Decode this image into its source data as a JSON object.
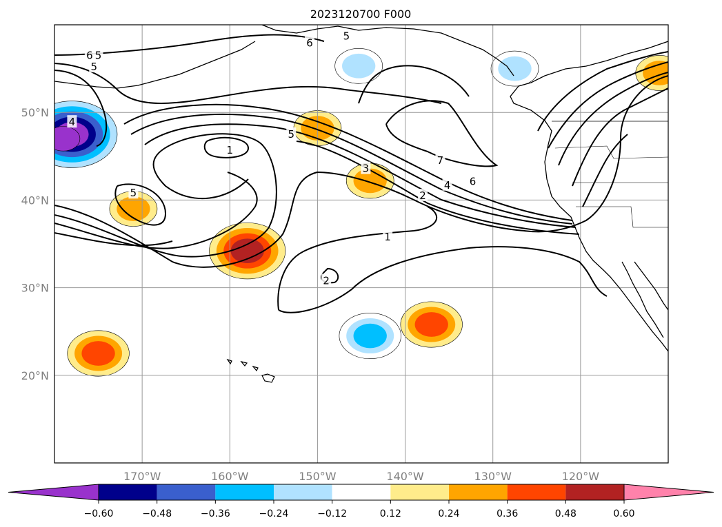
{
  "title": "2023120700 F000",
  "map": {
    "lon_range": [
      -180,
      -110
    ],
    "lat_range": [
      10,
      60
    ],
    "xticks": [
      {
        "lon": -170,
        "label": "170°W"
      },
      {
        "lon": -160,
        "label": "160°W"
      },
      {
        "lon": -150,
        "label": "150°W"
      },
      {
        "lon": -140,
        "label": "140°W"
      },
      {
        "lon": -130,
        "label": "130°W"
      },
      {
        "lon": -120,
        "label": "120°W"
      }
    ],
    "yticks": [
      {
        "lat": 20,
        "label": "20°N"
      },
      {
        "lat": 30,
        "label": "30°N"
      },
      {
        "lat": 40,
        "label": "40°N"
      },
      {
        "lat": 50,
        "label": "50°N"
      }
    ],
    "grid": true,
    "contour_color": "#000000",
    "contour_labels": [
      {
        "text": "6",
        "lon": -176,
        "lat": 56.5
      },
      {
        "text": "5",
        "lon": -175,
        "lat": 56.5
      },
      {
        "text": "5",
        "lon": -175.5,
        "lat": 55.2
      },
      {
        "text": "4",
        "lon": -178,
        "lat": 48.9
      },
      {
        "text": "1",
        "lon": -160,
        "lat": 45.7
      },
      {
        "text": "5",
        "lon": -171,
        "lat": 40.8
      },
      {
        "text": "5",
        "lon": -153,
        "lat": 47.5
      },
      {
        "text": "6",
        "lon": -150.9,
        "lat": 57.9
      },
      {
        "text": "5",
        "lon": -146.7,
        "lat": 58.7
      },
      {
        "text": "3",
        "lon": -144.5,
        "lat": 43.6
      },
      {
        "text": "7",
        "lon": -136,
        "lat": 44.5
      },
      {
        "text": "6",
        "lon": -132.3,
        "lat": 42.1
      },
      {
        "text": "4",
        "lon": -135.2,
        "lat": 41.7
      },
      {
        "text": "2",
        "lon": -138,
        "lat": 40.5
      },
      {
        "text": "1",
        "lon": -142,
        "lat": 35.8
      },
      {
        "text": "2",
        "lon": -149,
        "lat": 30.8
      }
    ],
    "anomaly_blobs": [
      {
        "lon": -178,
        "lat": 47.5,
        "levels": [
          -0.24,
          -0.36,
          -0.48,
          -0.6,
          -0.72
        ]
      },
      {
        "lon": -158,
        "lat": 34.2,
        "levels": [
          0.12,
          0.24,
          0.36,
          0.48
        ]
      },
      {
        "lon": -175,
        "lat": 22.5,
        "levels": [
          0.12,
          0.24,
          0.36
        ]
      },
      {
        "lon": -150,
        "lat": 48.2,
        "levels": [
          0.12,
          0.24
        ]
      },
      {
        "lon": -144,
        "lat": 42.2,
        "levels": [
          0.12,
          0.24
        ]
      },
      {
        "lon": -137,
        "lat": 25.8,
        "levels": [
          0.12,
          0.24,
          0.36
        ]
      },
      {
        "lon": -144,
        "lat": 24.5,
        "levels": [
          -0.12,
          -0.24,
          -0.36
        ]
      },
      {
        "lon": -127.5,
        "lat": 55,
        "levels": [
          -0.12,
          -0.24
        ]
      },
      {
        "lon": -145.3,
        "lat": 55.3,
        "levels": [
          -0.12,
          -0.24
        ]
      },
      {
        "lon": -111,
        "lat": 54.5,
        "levels": [
          0.12,
          0.24
        ]
      },
      {
        "lon": -171,
        "lat": 39,
        "levels": [
          0.12,
          0.24
        ]
      },
      {
        "lon": -179,
        "lat": 47,
        "levels": [
          -0.72
        ]
      }
    ]
  },
  "colorbar": {
    "colors": [
      "#9932cc",
      "#00008b",
      "#3a5fcd",
      "#00bfff",
      "#b0e2ff",
      "#ffffff",
      "#ffec8b",
      "#ffa500",
      "#ff4500",
      "#b22222",
      "#ff82ab"
    ],
    "tick_labels": [
      "−0.60",
      "−0.48",
      "−0.36",
      "−0.24",
      "−0.12",
      "0.12",
      "0.24",
      "0.36",
      "0.48",
      "0.60"
    ]
  }
}
